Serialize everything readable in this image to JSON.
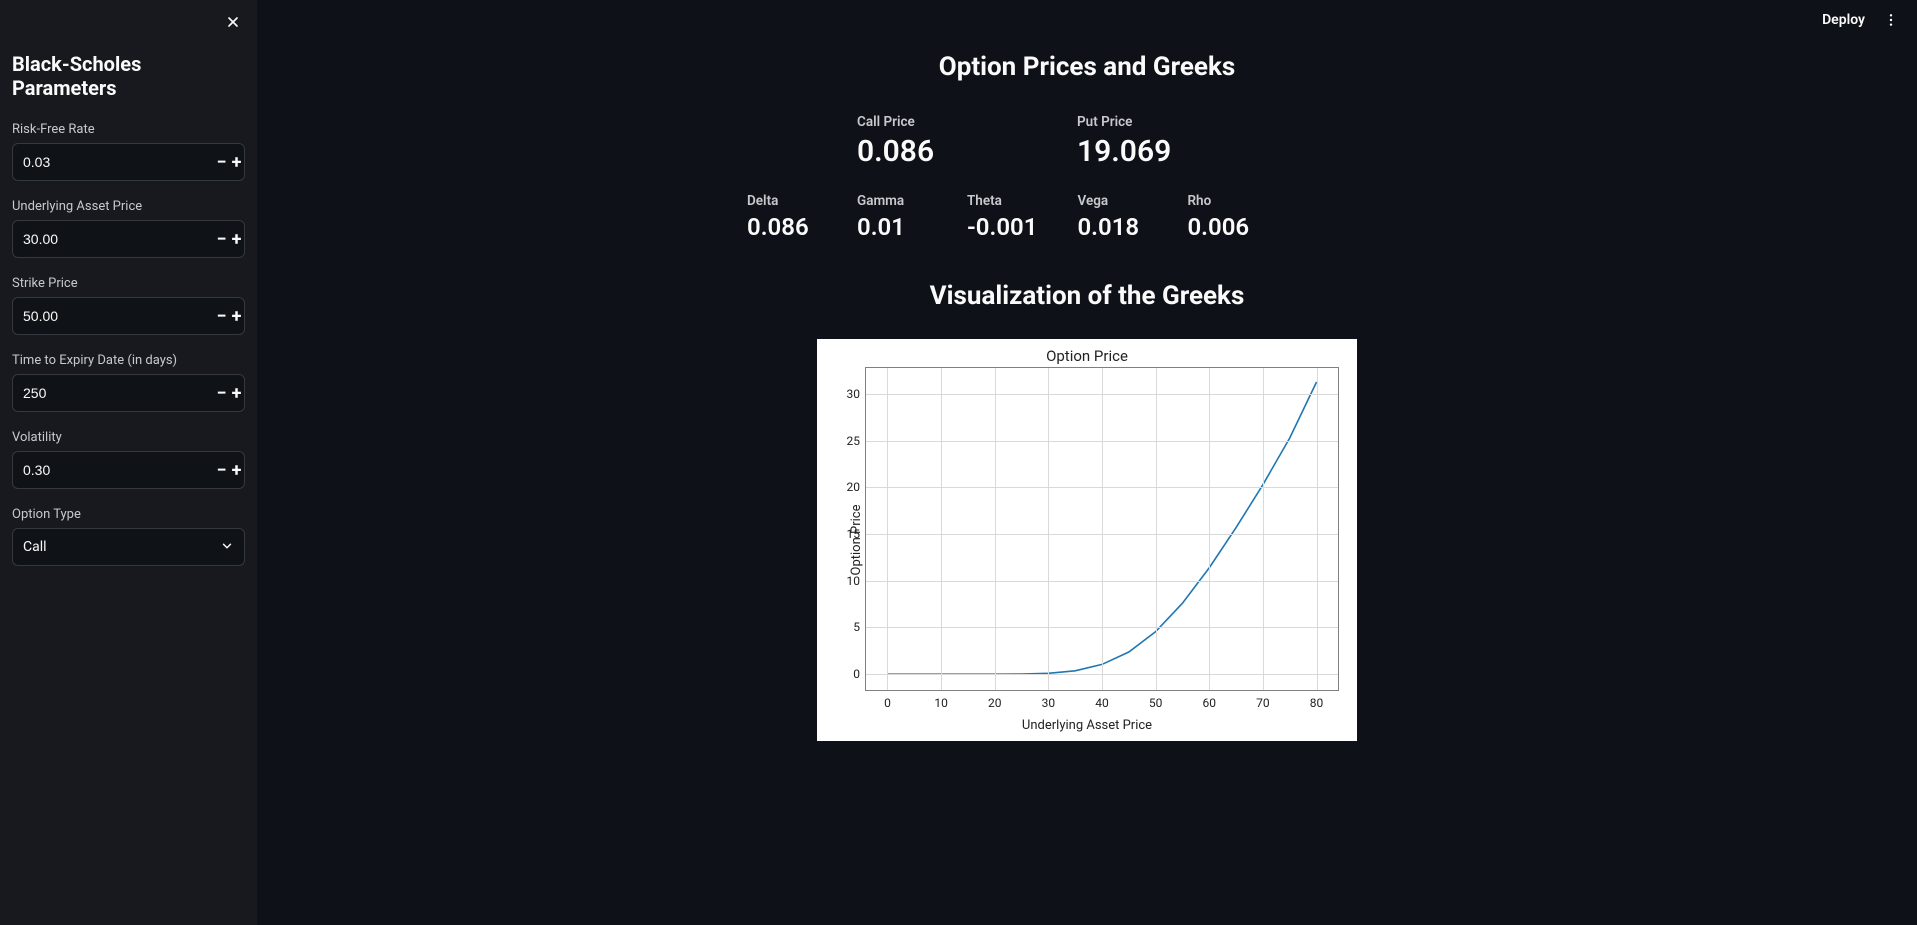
{
  "sidebar": {
    "title": "Black-Scholes Parameters",
    "fields": {
      "rate": {
        "label": "Risk-Free Rate",
        "value": "0.03"
      },
      "spot": {
        "label": "Underlying Asset Price",
        "value": "30.00"
      },
      "strike": {
        "label": "Strike Price",
        "value": "50.00"
      },
      "expiry": {
        "label": "Time to Expiry Date (in days)",
        "value": "250"
      },
      "vol": {
        "label": "Volatility",
        "value": "0.30"
      },
      "option_type": {
        "label": "Option Type",
        "value": "Call"
      }
    }
  },
  "toolbar": {
    "deploy_label": "Deploy"
  },
  "main": {
    "title": "Option Prices and Greeks",
    "prices": {
      "call": {
        "label": "Call Price",
        "value": "0.086"
      },
      "put": {
        "label": "Put Price",
        "value": "19.069"
      }
    },
    "greeks": {
      "delta": {
        "label": "Delta",
        "value": "0.086"
      },
      "gamma": {
        "label": "Gamma",
        "value": "0.01"
      },
      "theta": {
        "label": "Theta",
        "value": "-0.001"
      },
      "vega": {
        "label": "Vega",
        "value": "0.018"
      },
      "rho": {
        "label": "Rho",
        "value": "0.006"
      }
    },
    "vis_title": "Visualization of the Greeks"
  },
  "chart": {
    "type": "line",
    "title": "Option Price",
    "xlabel": "Underlying Asset Price",
    "ylabel": "Option Price",
    "xlim": [
      -4,
      84
    ],
    "ylim": [
      -1.7,
      32.8
    ],
    "xticks": [
      0,
      10,
      20,
      30,
      40,
      50,
      60,
      70,
      80
    ],
    "yticks": [
      0,
      5,
      10,
      15,
      20,
      25,
      30
    ],
    "line_color": "#1f77b4",
    "line_width": 1.6,
    "grid_color": "#d9d9d9",
    "background_color": "#ffffff",
    "border_color": "#808080",
    "title_fontsize": 15,
    "label_fontsize": 13,
    "tick_fontsize": 12,
    "x": [
      0,
      5,
      10,
      15,
      20,
      25,
      30,
      35,
      40,
      45,
      50,
      55,
      60,
      65,
      70,
      75,
      80
    ],
    "y": [
      0.0,
      0.0,
      0.0,
      0.0,
      0.0,
      0.01,
      0.09,
      0.36,
      1.04,
      2.37,
      4.55,
      7.6,
      11.4,
      15.7,
      20.3,
      25.3,
      31.3
    ]
  }
}
